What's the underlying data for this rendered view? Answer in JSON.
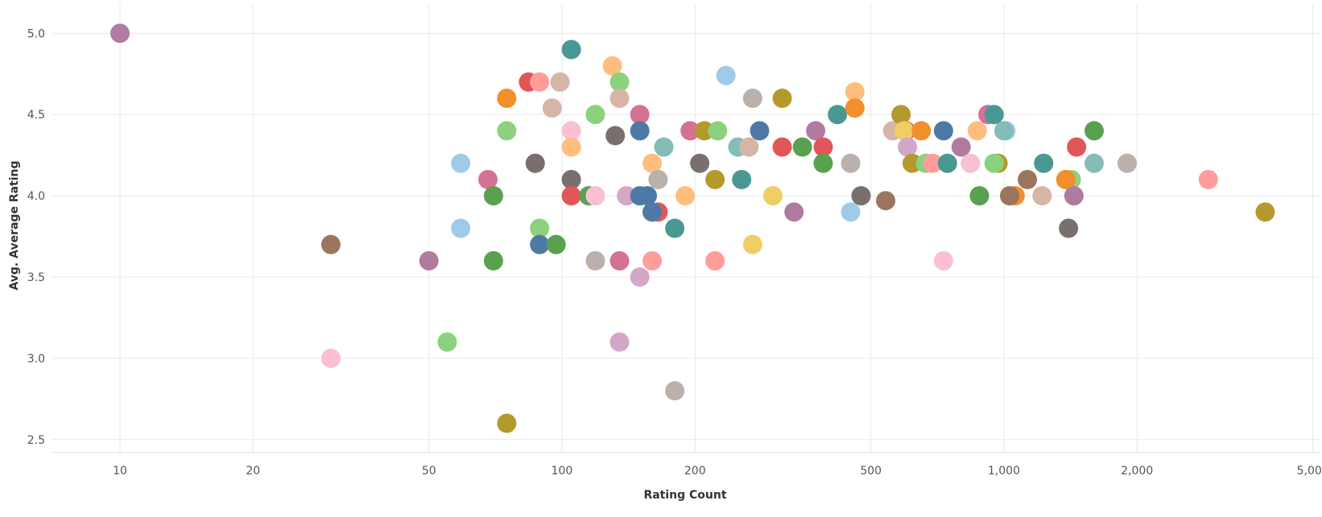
{
  "chart_data": {
    "type": "scatter",
    "title": "",
    "xlabel": "Rating Count",
    "ylabel": "Avg. Average Rating",
    "x_scale": "log",
    "xlim": [
      7,
      5200
    ],
    "ylim": [
      2.42,
      5.18
    ],
    "x_ticks": [
      10,
      20,
      50,
      100,
      200,
      500,
      1000,
      2000,
      5000
    ],
    "x_tick_labels": [
      "10",
      "20",
      "50",
      "100",
      "200",
      "500",
      "1,000",
      "2,000",
      "5,000"
    ],
    "y_ticks": [
      2.5,
      3.0,
      3.5,
      4.0,
      4.5,
      5.0
    ],
    "y_tick_labels": [
      "2.5",
      "3.0",
      "3.5",
      "4.0",
      "4.5",
      "5.0"
    ],
    "grid": true,
    "legend": "none",
    "points": [
      {
        "x": 10,
        "y": 5.0,
        "color": "#b07aa1"
      },
      {
        "x": 30,
        "y": 3.7,
        "color": "#9c755f"
      },
      {
        "x": 30,
        "y": 3.0,
        "color": "#fabfd2"
      },
      {
        "x": 50,
        "y": 3.6,
        "color": "#b07aa1"
      },
      {
        "x": 55,
        "y": 3.1,
        "color": "#8cd17d"
      },
      {
        "x": 59,
        "y": 4.2,
        "color": "#a0cbe8"
      },
      {
        "x": 59,
        "y": 3.8,
        "color": "#a0cbe8"
      },
      {
        "x": 68,
        "y": 4.1,
        "color": "#d37295"
      },
      {
        "x": 70,
        "y": 4.0,
        "color": "#59a14f"
      },
      {
        "x": 70,
        "y": 3.6,
        "color": "#59a14f"
      },
      {
        "x": 75,
        "y": 4.6,
        "color": "#f28e2b"
      },
      {
        "x": 75,
        "y": 4.4,
        "color": "#8cd17d"
      },
      {
        "x": 75,
        "y": 2.6,
        "color": "#b6992d"
      },
      {
        "x": 84,
        "y": 4.7,
        "color": "#e15759"
      },
      {
        "x": 87,
        "y": 4.2,
        "color": "#79706e"
      },
      {
        "x": 89,
        "y": 4.7,
        "color": "#ff9d9a"
      },
      {
        "x": 89,
        "y": 3.8,
        "color": "#8cd17d"
      },
      {
        "x": 89,
        "y": 3.7,
        "color": "#4e79a7"
      },
      {
        "x": 95,
        "y": 4.54,
        "color": "#d7b5a6"
      },
      {
        "x": 97,
        "y": 3.7,
        "color": "#59a14f"
      },
      {
        "x": 99,
        "y": 4.7,
        "color": "#d7b5a6"
      },
      {
        "x": 105,
        "y": 4.9,
        "color": "#499894"
      },
      {
        "x": 105,
        "y": 4.4,
        "color": "#fabfd2"
      },
      {
        "x": 105,
        "y": 4.3,
        "color": "#ffbe7d"
      },
      {
        "x": 105,
        "y": 4.1,
        "color": "#79706e"
      },
      {
        "x": 105,
        "y": 4.0,
        "color": "#e15759"
      },
      {
        "x": 115,
        "y": 4.0,
        "color": "#59a14f"
      },
      {
        "x": 119,
        "y": 4.5,
        "color": "#8cd17d"
      },
      {
        "x": 119,
        "y": 4.0,
        "color": "#fabfd2"
      },
      {
        "x": 119,
        "y": 3.6,
        "color": "#bab0ac"
      },
      {
        "x": 130,
        "y": 4.8,
        "color": "#ffbe7d"
      },
      {
        "x": 132,
        "y": 4.37,
        "color": "#79706e"
      },
      {
        "x": 135,
        "y": 4.7,
        "color": "#8cd17d"
      },
      {
        "x": 135,
        "y": 4.6,
        "color": "#d7b5a6"
      },
      {
        "x": 135,
        "y": 3.6,
        "color": "#d37295"
      },
      {
        "x": 135,
        "y": 3.1,
        "color": "#d4a6c8"
      },
      {
        "x": 140,
        "y": 4.0,
        "color": "#d4a6c8"
      },
      {
        "x": 150,
        "y": 4.5,
        "color": "#d37295"
      },
      {
        "x": 150,
        "y": 4.4,
        "color": "#4e79a7"
      },
      {
        "x": 150,
        "y": 4.0,
        "color": "#4e79a7"
      },
      {
        "x": 150,
        "y": 3.5,
        "color": "#d4a6c8"
      },
      {
        "x": 156,
        "y": 4.0,
        "color": "#4e79a7"
      },
      {
        "x": 160,
        "y": 4.2,
        "color": "#ffbe7d"
      },
      {
        "x": 160,
        "y": 3.6,
        "color": "#ff9d9a"
      },
      {
        "x": 165,
        "y": 3.9,
        "color": "#e15759"
      },
      {
        "x": 160,
        "y": 3.9,
        "color": "#4e79a7"
      },
      {
        "x": 165,
        "y": 4.1,
        "color": "#bab0ac"
      },
      {
        "x": 170,
        "y": 4.3,
        "color": "#86bcb6"
      },
      {
        "x": 180,
        "y": 3.8,
        "color": "#499894"
      },
      {
        "x": 180,
        "y": 2.8,
        "color": "#bab0ac"
      },
      {
        "x": 190,
        "y": 4.0,
        "color": "#ffbe7d"
      },
      {
        "x": 195,
        "y": 4.4,
        "color": "#d37295"
      },
      {
        "x": 205,
        "y": 4.2,
        "color": "#79706e"
      },
      {
        "x": 210,
        "y": 4.4,
        "color": "#b6992d"
      },
      {
        "x": 225,
        "y": 4.4,
        "color": "#8cd17d"
      },
      {
        "x": 222,
        "y": 4.1,
        "color": "#b6992d"
      },
      {
        "x": 222,
        "y": 3.6,
        "color": "#ff9d9a"
      },
      {
        "x": 235,
        "y": 4.74,
        "color": "#a0cbe8"
      },
      {
        "x": 250,
        "y": 4.3,
        "color": "#86bcb6"
      },
      {
        "x": 255,
        "y": 4.1,
        "color": "#499894"
      },
      {
        "x": 265,
        "y": 4.3,
        "color": "#d7b5a6"
      },
      {
        "x": 270,
        "y": 4.6,
        "color": "#bab0ac"
      },
      {
        "x": 270,
        "y": 3.7,
        "color": "#f1ce63"
      },
      {
        "x": 280,
        "y": 4.4,
        "color": "#4e79a7"
      },
      {
        "x": 300,
        "y": 4.0,
        "color": "#f1ce63"
      },
      {
        "x": 315,
        "y": 4.6,
        "color": "#b6992d"
      },
      {
        "x": 315,
        "y": 4.3,
        "color": "#e15759"
      },
      {
        "x": 335,
        "y": 3.9,
        "color": "#b07aa1"
      },
      {
        "x": 350,
        "y": 4.3,
        "color": "#59a14f"
      },
      {
        "x": 375,
        "y": 4.4,
        "color": "#b07aa1"
      },
      {
        "x": 390,
        "y": 4.3,
        "color": "#e15759"
      },
      {
        "x": 390,
        "y": 4.2,
        "color": "#59a14f"
      },
      {
        "x": 420,
        "y": 4.5,
        "color": "#499894"
      },
      {
        "x": 450,
        "y": 4.2,
        "color": "#bab0ac"
      },
      {
        "x": 450,
        "y": 3.9,
        "color": "#a0cbe8"
      },
      {
        "x": 460,
        "y": 4.64,
        "color": "#ffbe7d"
      },
      {
        "x": 460,
        "y": 4.54,
        "color": "#f28e2b"
      },
      {
        "x": 475,
        "y": 4.0,
        "color": "#79706e"
      },
      {
        "x": 540,
        "y": 3.97,
        "color": "#9c755f"
      },
      {
        "x": 560,
        "y": 4.4,
        "color": "#d7b5a6"
      },
      {
        "x": 585,
        "y": 4.5,
        "color": "#b6992d"
      },
      {
        "x": 600,
        "y": 4.4,
        "color": "#e15759"
      },
      {
        "x": 595,
        "y": 4.4,
        "color": "#f1ce63"
      },
      {
        "x": 605,
        "y": 4.3,
        "color": "#d4a6c8"
      },
      {
        "x": 620,
        "y": 4.2,
        "color": "#b6992d"
      },
      {
        "x": 650,
        "y": 4.4,
        "color": "#f28e2b"
      },
      {
        "x": 665,
        "y": 4.2,
        "color": "#8cd17d"
      },
      {
        "x": 690,
        "y": 4.2,
        "color": "#ff9d9a"
      },
      {
        "x": 730,
        "y": 4.4,
        "color": "#4e79a7"
      },
      {
        "x": 745,
        "y": 4.2,
        "color": "#499894"
      },
      {
        "x": 730,
        "y": 3.6,
        "color": "#fabfd2"
      },
      {
        "x": 800,
        "y": 4.3,
        "color": "#b07aa1"
      },
      {
        "x": 840,
        "y": 4.2,
        "color": "#fabfd2"
      },
      {
        "x": 870,
        "y": 4.4,
        "color": "#ffbe7d"
      },
      {
        "x": 880,
        "y": 4.0,
        "color": "#59a14f"
      },
      {
        "x": 920,
        "y": 4.5,
        "color": "#d37295"
      },
      {
        "x": 950,
        "y": 4.5,
        "color": "#499894"
      },
      {
        "x": 970,
        "y": 4.2,
        "color": "#b6992d"
      },
      {
        "x": 950,
        "y": 4.2,
        "color": "#8cd17d"
      },
      {
        "x": 1010,
        "y": 4.4,
        "color": "#a0cbe8"
      },
      {
        "x": 1000,
        "y": 4.4,
        "color": "#86bcb6"
      },
      {
        "x": 1060,
        "y": 4.0,
        "color": "#f28e2b"
      },
      {
        "x": 1030,
        "y": 4.0,
        "color": "#9c755f"
      },
      {
        "x": 1130,
        "y": 4.1,
        "color": "#9c755f"
      },
      {
        "x": 1220,
        "y": 4.0,
        "color": "#d7b5a6"
      },
      {
        "x": 1230,
        "y": 4.2,
        "color": "#499894"
      },
      {
        "x": 1420,
        "y": 4.1,
        "color": "#8cd17d"
      },
      {
        "x": 1380,
        "y": 4.1,
        "color": "#f28e2b"
      },
      {
        "x": 1400,
        "y": 3.8,
        "color": "#79706e"
      },
      {
        "x": 1440,
        "y": 4.0,
        "color": "#b07aa1"
      },
      {
        "x": 1460,
        "y": 4.3,
        "color": "#e15759"
      },
      {
        "x": 1600,
        "y": 4.4,
        "color": "#59a14f"
      },
      {
        "x": 1600,
        "y": 4.2,
        "color": "#86bcb6"
      },
      {
        "x": 1900,
        "y": 4.2,
        "color": "#bab0ac"
      },
      {
        "x": 2900,
        "y": 4.1,
        "color": "#ff9d9a"
      },
      {
        "x": 3900,
        "y": 3.9,
        "color": "#b6992d"
      }
    ]
  }
}
